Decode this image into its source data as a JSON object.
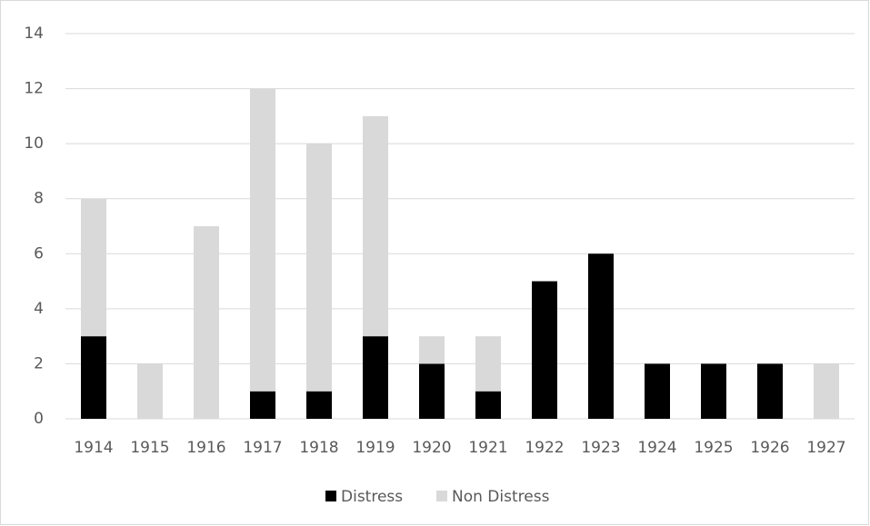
{
  "chart_data": {
    "type": "stacked_bar",
    "categories": [
      "1914",
      "1915",
      "1916",
      "1917",
      "1918",
      "1919",
      "1920",
      "1921",
      "1922",
      "1923",
      "1924",
      "1925",
      "1926",
      "1927"
    ],
    "series": [
      {
        "name": "Distress",
        "color": "#000000",
        "values": [
          3,
          0,
          0,
          1,
          1,
          3,
          2,
          1,
          5,
          6,
          2,
          2,
          2,
          0
        ]
      },
      {
        "name": "Non Distress",
        "color": "#d9d9d9",
        "values": [
          5,
          2,
          7,
          11,
          9,
          8,
          1,
          2,
          0,
          0,
          0,
          0,
          0,
          2
        ]
      }
    ],
    "ylim": [
      0,
      14
    ],
    "yticks": [
      0,
      2,
      4,
      6,
      8,
      10,
      12,
      14
    ],
    "grid": true,
    "legend": "bottom"
  }
}
